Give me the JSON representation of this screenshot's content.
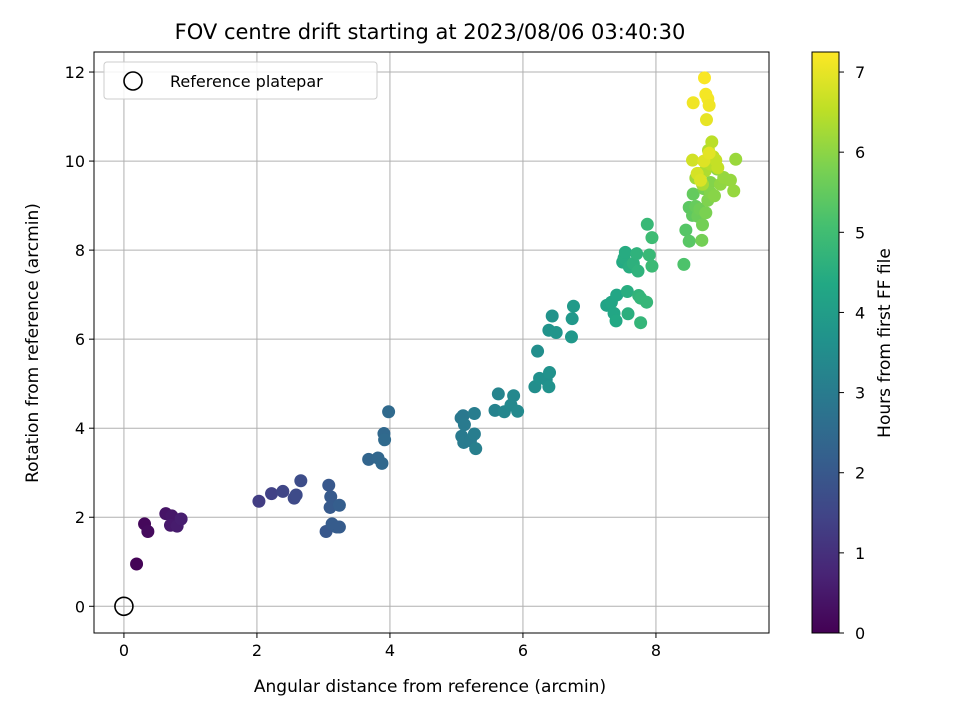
{
  "chart_data": {
    "type": "scatter",
    "title": "FOV centre drift starting at 2023/08/06 03:40:30",
    "xlabel": "Angular distance from reference (arcmin)",
    "ylabel": "Rotation from reference (arcmin)",
    "xlim": [
      -0.45,
      9.7
    ],
    "ylim": [
      -0.6,
      12.45
    ],
    "xticks": [
      "0",
      "2",
      "4",
      "6",
      "8"
    ],
    "xtick_values": [
      0,
      2,
      4,
      6,
      8
    ],
    "yticks": [
      "0",
      "2",
      "4",
      "6",
      "8",
      "10",
      "12"
    ],
    "ytick_values": [
      0,
      2,
      4,
      6,
      8,
      10,
      12
    ],
    "grid": true,
    "legend": {
      "placement": "top-left",
      "entries": [
        "Reference platepar"
      ]
    },
    "reference_point": {
      "x": 0,
      "y": 0
    },
    "colorbar": {
      "label": "Hours from first FF file",
      "colormap": "viridis",
      "range": [
        0,
        7.25
      ],
      "ticks": [
        "0",
        "1",
        "2",
        "3",
        "4",
        "5",
        "6",
        "7"
      ],
      "tick_values": [
        0,
        1,
        2,
        3,
        4,
        5,
        6,
        7
      ]
    },
    "points": [
      [
        0.19,
        0.95,
        0.05
      ],
      [
        0.31,
        1.85,
        0.15
      ],
      [
        0.36,
        1.68,
        0.2
      ],
      [
        0.63,
        2.08,
        0.4
      ],
      [
        0.72,
        2.03,
        0.45
      ],
      [
        0.7,
        1.82,
        0.5
      ],
      [
        0.8,
        1.8,
        0.55
      ],
      [
        0.86,
        1.96,
        0.6
      ],
      [
        2.03,
        2.36,
        1.3
      ],
      [
        2.22,
        2.53,
        1.4
      ],
      [
        2.39,
        2.58,
        1.5
      ],
      [
        2.56,
        2.43,
        1.6
      ],
      [
        2.59,
        2.5,
        1.65
      ],
      [
        2.66,
        2.82,
        1.7
      ],
      [
        3.04,
        1.68,
        2.0
      ],
      [
        3.08,
        2.72,
        2.0
      ],
      [
        3.11,
        2.46,
        2.05
      ],
      [
        3.1,
        2.22,
        2.05
      ],
      [
        3.13,
        1.85,
        2.1
      ],
      [
        3.2,
        1.78,
        2.1
      ],
      [
        3.24,
        1.78,
        2.1
      ],
      [
        3.24,
        2.27,
        2.15
      ],
      [
        3.68,
        3.3,
        2.35
      ],
      [
        3.82,
        3.33,
        2.4
      ],
      [
        3.88,
        3.21,
        2.45
      ],
      [
        3.91,
        3.88,
        2.45
      ],
      [
        3.92,
        3.74,
        2.5
      ],
      [
        3.98,
        4.37,
        2.5
      ],
      [
        5.07,
        4.23,
        2.9
      ],
      [
        5.1,
        4.28,
        2.9
      ],
      [
        5.12,
        4.08,
        2.95
      ],
      [
        5.08,
        3.82,
        2.95
      ],
      [
        5.11,
        3.68,
        3.0
      ],
      [
        5.21,
        3.72,
        3.0
      ],
      [
        5.27,
        3.87,
        3.05
      ],
      [
        5.27,
        4.33,
        3.05
      ],
      [
        5.29,
        3.54,
        3.1
      ],
      [
        5.58,
        4.4,
        3.2
      ],
      [
        5.63,
        4.77,
        3.25
      ],
      [
        5.72,
        4.37,
        3.3
      ],
      [
        5.82,
        4.52,
        3.35
      ],
      [
        5.86,
        4.73,
        3.35
      ],
      [
        5.92,
        4.38,
        3.4
      ],
      [
        6.18,
        4.93,
        3.55
      ],
      [
        6.22,
        5.73,
        3.55
      ],
      [
        6.25,
        5.12,
        3.6
      ],
      [
        6.35,
        5.09,
        3.6
      ],
      [
        6.39,
        4.93,
        3.65
      ],
      [
        6.4,
        5.25,
        3.65
      ],
      [
        6.39,
        6.2,
        3.7
      ],
      [
        6.44,
        6.52,
        3.7
      ],
      [
        6.5,
        6.15,
        3.75
      ],
      [
        6.73,
        6.05,
        3.85
      ],
      [
        6.74,
        6.46,
        3.85
      ],
      [
        6.76,
        6.74,
        3.9
      ],
      [
        7.26,
        6.76,
        4.2
      ],
      [
        7.33,
        6.83,
        4.25
      ],
      [
        7.37,
        6.58,
        4.3
      ],
      [
        7.41,
        6.99,
        4.3
      ],
      [
        7.4,
        6.41,
        4.35
      ],
      [
        7.5,
        7.73,
        4.4
      ],
      [
        7.52,
        7.82,
        4.45
      ],
      [
        7.54,
        7.95,
        4.45
      ],
      [
        7.57,
        7.07,
        4.5
      ],
      [
        7.6,
        7.62,
        4.5
      ],
      [
        7.58,
        6.57,
        4.55
      ],
      [
        7.66,
        7.7,
        4.6
      ],
      [
        7.71,
        7.92,
        4.65
      ],
      [
        7.73,
        7.53,
        4.65
      ],
      [
        7.74,
        6.98,
        4.7
      ],
      [
        7.77,
        6.92,
        4.75
      ],
      [
        7.77,
        6.37,
        4.75
      ],
      [
        7.86,
        6.83,
        4.8
      ],
      [
        7.87,
        8.58,
        4.85
      ],
      [
        7.9,
        7.89,
        4.85
      ],
      [
        7.94,
        7.64,
        4.9
      ],
      [
        7.94,
        8.28,
        4.95
      ],
      [
        8.42,
        7.68,
        5.2
      ],
      [
        8.45,
        8.45,
        5.3
      ],
      [
        8.5,
        8.2,
        5.35
      ],
      [
        8.5,
        8.96,
        5.4
      ],
      [
        8.55,
        8.78,
        5.45
      ],
      [
        8.56,
        9.26,
        5.5
      ],
      [
        8.6,
        8.98,
        5.55
      ],
      [
        8.63,
        8.76,
        5.6
      ],
      [
        8.66,
        8.92,
        5.65
      ],
      [
        8.69,
        8.22,
        5.7
      ],
      [
        8.7,
        8.57,
        5.7
      ],
      [
        8.72,
        9.38,
        5.75
      ],
      [
        8.75,
        8.84,
        5.8
      ],
      [
        8.78,
        9.12,
        5.85
      ],
      [
        8.82,
        9.52,
        5.9
      ],
      [
        8.82,
        9.29,
        5.9
      ],
      [
        8.88,
        9.22,
        5.95
      ],
      [
        8.92,
        9.82,
        6.0
      ],
      [
        8.97,
        9.48,
        6.05
      ],
      [
        9.02,
        9.63,
        6.1
      ],
      [
        9.12,
        9.57,
        6.1
      ],
      [
        9.17,
        9.33,
        6.1
      ],
      [
        9.2,
        10.04,
        6.15
      ],
      [
        8.6,
        9.62,
        6.2
      ],
      [
        8.63,
        9.72,
        6.25
      ],
      [
        8.7,
        9.48,
        6.3
      ],
      [
        8.74,
        9.78,
        6.35
      ],
      [
        8.79,
        10.24,
        6.4
      ],
      [
        8.82,
        9.93,
        6.45
      ],
      [
        8.84,
        10.43,
        6.5
      ],
      [
        8.86,
        10.1,
        6.55
      ],
      [
        8.9,
        10.02,
        6.6
      ],
      [
        8.93,
        9.85,
        6.6
      ],
      [
        8.55,
        10.02,
        6.75
      ],
      [
        8.62,
        9.72,
        6.8
      ],
      [
        8.67,
        9.57,
        6.85
      ],
      [
        8.72,
        10.0,
        6.9
      ],
      [
        8.76,
        10.93,
        7.0
      ],
      [
        8.8,
        10.18,
        6.95
      ],
      [
        8.56,
        11.31,
        7.1
      ],
      [
        8.73,
        11.87,
        7.2
      ],
      [
        8.75,
        11.5,
        7.15
      ],
      [
        8.78,
        11.4,
        7.15
      ],
      [
        8.8,
        11.25,
        7.1
      ]
    ]
  }
}
